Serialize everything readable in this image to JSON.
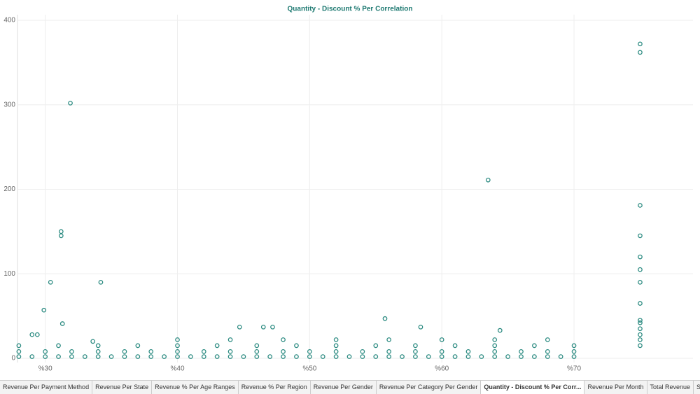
{
  "chart_data": {
    "type": "scatter",
    "title": "Quantity - Discount % Per Correlation",
    "xlim": [
      27.9,
      79
    ],
    "ylim": [
      0,
      400
    ],
    "xticks": [
      {
        "value": 30,
        "label": "%30"
      },
      {
        "value": 40,
        "label": "%40"
      },
      {
        "value": 50,
        "label": "%50"
      },
      {
        "value": 60,
        "label": "%60"
      },
      {
        "value": 70,
        "label": "%70"
      }
    ],
    "yticks": [
      0,
      100,
      200,
      300,
      400
    ],
    "grid": true,
    "series": [
      {
        "color": "#2a8a80",
        "x": [
          31.9,
          75,
          75,
          63.5,
          75,
          31.2,
          31.2,
          75,
          75,
          75,
          75,
          75,
          75,
          75,
          75,
          75,
          75,
          75,
          34.2,
          30.4,
          29.9,
          31.3,
          29,
          29.4,
          33.6,
          44.7,
          46.5,
          47.2,
          55.7,
          58.4,
          64.4,
          28,
          29,
          30,
          31,
          32,
          33,
          34,
          35,
          36,
          37,
          38,
          39,
          40,
          41,
          42,
          43,
          44,
          45,
          46,
          47,
          48,
          49,
          50,
          51,
          52,
          53,
          54,
          55,
          56,
          57,
          58,
          59,
          60,
          61,
          62,
          63,
          64,
          65,
          66,
          67,
          68,
          69,
          70,
          28,
          30,
          32,
          34,
          36,
          38,
          40,
          42,
          44,
          46,
          48,
          50,
          52,
          54,
          56,
          58,
          60,
          62,
          64,
          66,
          68,
          70,
          28,
          31,
          34,
          37,
          40,
          43,
          46,
          49,
          52,
          55,
          58,
          61,
          64,
          67,
          70,
          40,
          44,
          48,
          52,
          56,
          60,
          64,
          68
        ],
        "values": [
          302,
          372,
          362,
          211,
          181,
          150,
          145,
          145,
          120,
          105,
          90,
          65,
          45,
          42,
          35,
          28,
          22,
          15,
          90,
          90,
          57,
          41,
          28,
          28,
          20,
          37,
          37,
          37,
          47,
          37,
          33,
          2,
          2,
          2,
          2,
          2,
          2,
          2,
          2,
          2,
          2,
          2,
          2,
          2,
          2,
          2,
          2,
          2,
          2,
          2,
          2,
          2,
          2,
          2,
          2,
          2,
          2,
          2,
          2,
          2,
          2,
          2,
          2,
          2,
          2,
          2,
          2,
          2,
          2,
          2,
          2,
          2,
          2,
          2,
          8,
          8,
          8,
          8,
          8,
          8,
          8,
          8,
          8,
          8,
          8,
          8,
          8,
          8,
          8,
          8,
          8,
          8,
          8,
          8,
          8,
          8,
          15,
          15,
          15,
          15,
          15,
          15,
          15,
          15,
          15,
          15,
          15,
          15,
          15,
          15,
          15,
          22,
          22,
          22,
          22,
          22,
          22,
          22,
          22
        ]
      }
    ]
  },
  "tabs": [
    "Revenue Per Payment Method",
    "Revenue Per State",
    "Revenue % Per Age Ranges",
    "Revenue % Per Region",
    "Revenue Per Gender",
    "Revenue Per Category Per Gender",
    "Quantity - Discount % Per Corr...",
    "Revenue Per Month",
    "Total Revenue",
    "Sales D"
  ],
  "active_tab": 6
}
